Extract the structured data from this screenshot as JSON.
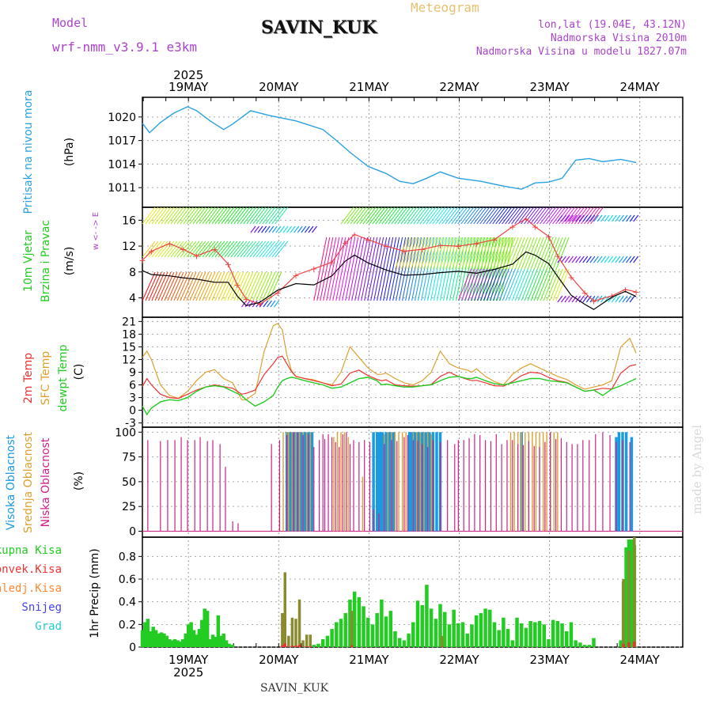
{
  "header": {
    "model_label": "Model",
    "model_name": "wrf-nmm_v3.9.1  e3km",
    "station": "SAVIN_KUK",
    "product": "Meteogram",
    "coords": "lon,lat (19.04E, 43.12N)",
    "elevation": "Nadmorska Visina 2010m",
    "model_elevation": "Nadmorska Visina u modelu 1827.07m",
    "bottom_station": "SAVIN_KUK",
    "credit": "made by Angel"
  },
  "time_axis": {
    "year": "2025",
    "days": [
      "19MAY",
      "20MAY",
      "21MAY",
      "22MAY",
      "23MAY",
      "24MAY"
    ]
  },
  "colors": {
    "pressure": "#2aa1e0",
    "wind_speed": "#000000",
    "wind_gust": "#ee4444",
    "temp2m": "#ee3333",
    "sfc_temp": "#dda030",
    "dewpt": "#22cc22",
    "high_cloud": "#1a9ae0",
    "mid_cloud": "#dda030",
    "low_cloud": "#cc2288",
    "total_precip": "#22cc22",
    "conv_precip": "#ee3333",
    "frozen_precip": "#ff8833",
    "snow": "#4444ee",
    "hail": "#22cccc"
  },
  "chart_data": [
    {
      "id": "pressure",
      "type": "line",
      "title": "Pritisak na nivou mora",
      "ylabel": "(hPa)",
      "yticks": [
        "1011",
        "1014",
        "1017",
        "1020"
      ],
      "ylim": [
        1008.5,
        1022.5
      ],
      "x_days": [
        0.0,
        0.08,
        0.2,
        0.35,
        0.5,
        0.6,
        0.75,
        0.9,
        1.0,
        1.2,
        1.4,
        1.7,
        2.0,
        2.15,
        2.3,
        2.5,
        2.7,
        2.85,
        3.0,
        3.15,
        3.3,
        3.5,
        3.75,
        4.0,
        4.2,
        4.35,
        4.5,
        4.65,
        4.8,
        4.95,
        5.1,
        5.3,
        5.47
      ],
      "values": [
        1019.2,
        1018,
        1019.3,
        1020.5,
        1021.3,
        1020.8,
        1019.5,
        1018.4,
        1019.1,
        1020.8,
        1020.2,
        1019.5,
        1018.4,
        1017,
        1015.5,
        1013.7,
        1012.8,
        1011.8,
        1011.5,
        1012.2,
        1013,
        1012.2,
        1011.8,
        1011.2,
        1010.8,
        1011.6,
        1011.7,
        1012.2,
        1014.5,
        1014.7,
        1014.3,
        1014.6,
        1014.2
      ]
    },
    {
      "id": "wind",
      "type": "line",
      "title": "10m Vjetar Brzina i Pravac",
      "ylabel": "(m/s)",
      "yticks": [
        "4",
        "8",
        "12",
        "16"
      ],
      "ylim": [
        1.0,
        18.0
      ],
      "compass_label": "w <- -> E",
      "x_days": [
        0.0,
        0.1,
        0.3,
        0.45,
        0.6,
        0.8,
        0.95,
        1.05,
        1.15,
        1.3,
        1.5,
        1.7,
        1.9,
        2.1,
        2.25,
        2.35,
        2.5,
        2.7,
        2.9,
        3.1,
        3.3,
        3.5,
        3.7,
        3.9,
        4.1,
        4.25,
        4.35,
        4.5,
        4.6,
        4.75,
        4.9,
        5.0,
        5.2,
        5.35,
        5.47
      ],
      "speed": [
        8.2,
        7.6,
        7.4,
        7.1,
        6.9,
        6.4,
        6.4,
        4.3,
        2.8,
        3.3,
        5.2,
        6.2,
        6.0,
        7.4,
        9.7,
        10.6,
        9.4,
        8.3,
        7.5,
        7.6,
        7.9,
        8.1,
        7.8,
        8.4,
        9.2,
        11.1,
        10.6,
        9.3,
        7.3,
        4.4,
        3.0,
        2.2,
        4.1,
        5.0,
        4.2
      ],
      "gust": [
        9.8,
        11.2,
        12.4,
        11.5,
        10.5,
        11.5,
        9.2,
        6.0,
        3.8,
        3.0,
        4.8,
        7.5,
        8.5,
        9.5,
        12.5,
        13.8,
        13.0,
        12.0,
        11.2,
        11.5,
        12.1,
        12.0,
        12.4,
        13.0,
        15.0,
        16.2,
        15.0,
        13.5,
        10.5,
        7.2,
        4.8,
        3.5,
        4.3,
        5.3,
        4.9
      ]
    },
    {
      "id": "temperature",
      "type": "line",
      "ylabel": "(C)",
      "legend": [
        "2m Temp",
        "SFC Temp",
        "dewpt Temp"
      ],
      "yticks": [
        "-3",
        "0",
        "3",
        "6",
        "9",
        "12",
        "15",
        "18",
        "21"
      ],
      "ylim": [
        -4.0,
        22.0
      ],
      "x_days": [
        0.0,
        0.05,
        0.1,
        0.2,
        0.3,
        0.4,
        0.5,
        0.6,
        0.7,
        0.8,
        0.9,
        1.0,
        1.1,
        1.15,
        1.25,
        1.35,
        1.45,
        1.5,
        1.55,
        1.6,
        1.65,
        1.7,
        1.8,
        1.9,
        2.0,
        2.1,
        2.2,
        2.3,
        2.4,
        2.5,
        2.6,
        2.65,
        2.7,
        2.8,
        2.9,
        3.0,
        3.1,
        3.2,
        3.3,
        3.4,
        3.5,
        3.6,
        3.65,
        3.7,
        3.8,
        3.9,
        4.0,
        4.1,
        4.2,
        4.3,
        4.4,
        4.5,
        4.6,
        4.7,
        4.8,
        4.9,
        5.0,
        5.1,
        5.2,
        5.3,
        5.4,
        5.47
      ],
      "t2m": [
        5.6,
        7.5,
        6.0,
        3.8,
        3.0,
        2.8,
        3.8,
        4.8,
        5.5,
        6.0,
        5.6,
        5.2,
        3.8,
        4.0,
        4.8,
        8.5,
        11.0,
        12.5,
        12.8,
        11.0,
        9.2,
        8.0,
        7.5,
        7.0,
        6.5,
        5.8,
        6.2,
        8.8,
        9.5,
        8.2,
        7.3,
        7.0,
        7.2,
        6.0,
        5.8,
        5.7,
        5.8,
        6.1,
        8.0,
        9.0,
        8.0,
        7.3,
        7.0,
        7.1,
        6.5,
        5.8,
        5.7,
        6.8,
        8.2,
        9.0,
        8.8,
        7.8,
        7.0,
        6.6,
        5.5,
        4.5,
        4.8,
        5.2,
        5.0,
        8.8,
        10.5,
        10.8
      ],
      "sfc": [
        12.5,
        14.0,
        12.0,
        6.0,
        3.5,
        2.8,
        4.5,
        7.0,
        9.0,
        9.6,
        7.5,
        6.5,
        2.5,
        2.5,
        4.0,
        14.0,
        20.0,
        20.5,
        19.0,
        13.0,
        9.5,
        8.0,
        7.5,
        7.2,
        6.5,
        6.0,
        9.0,
        15.0,
        12.5,
        10.0,
        8.5,
        8.5,
        8.8,
        7.5,
        6.5,
        6.0,
        7.0,
        9.0,
        14.0,
        11.0,
        10.0,
        9.5,
        9.0,
        9.8,
        8.0,
        6.8,
        6.0,
        8.5,
        10.0,
        11.0,
        10.0,
        9.0,
        8.0,
        7.3,
        6.0,
        5.0,
        5.5,
        6.0,
        7.0,
        15.0,
        17.0,
        13.5
      ],
      "dewpt": [
        1.0,
        -1.0,
        0.5,
        2.0,
        2.5,
        2.3,
        3.0,
        4.5,
        5.5,
        5.8,
        5.5,
        4.5,
        3.5,
        2.5,
        1.0,
        2.0,
        3.5,
        5.5,
        7.0,
        7.5,
        7.8,
        7.6,
        7.0,
        6.5,
        6.0,
        5.2,
        5.5,
        6.5,
        7.5,
        7.8,
        7.0,
        6.0,
        6.2,
        5.8,
        5.5,
        5.5,
        5.8,
        6.0,
        7.0,
        7.8,
        8.0,
        7.5,
        7.5,
        7.8,
        7.0,
        6.3,
        6.0,
        6.5,
        7.0,
        7.5,
        7.5,
        7.0,
        6.8,
        6.5,
        5.5,
        4.5,
        4.8,
        3.5,
        5.0,
        5.8,
        6.8,
        7.5
      ]
    },
    {
      "id": "clouds",
      "type": "bar",
      "ylabel": "(%)",
      "legend": [
        "Visoka Oblacnost",
        "Srednja Oblacnost",
        "Niska Oblacnost"
      ],
      "yticks": [
        "0",
        "25",
        "50",
        "75",
        "100"
      ],
      "ylim": [
        -6,
        105
      ],
      "low_x": [
        0.06,
        0.2,
        0.28,
        0.36,
        0.43,
        0.5,
        0.58,
        0.64,
        0.72,
        0.78,
        0.86,
        0.92,
        1.0,
        1.06,
        1.15,
        1.2,
        1.24,
        1.3,
        1.38,
        1.43,
        1.52,
        1.6,
        1.67,
        1.72,
        1.78,
        1.84,
        1.9,
        1.96,
        2.0,
        2.02,
        2.06,
        2.1,
        2.14,
        2.18,
        2.22,
        2.26,
        2.3,
        2.34,
        2.4,
        2.46,
        2.52,
        2.56,
        2.62,
        2.68,
        2.76,
        2.82,
        2.9,
        2.94,
        3.0,
        3.05,
        3.1,
        3.16,
        3.22,
        3.3,
        3.38,
        3.46,
        3.5,
        3.56,
        3.62,
        3.68,
        3.74,
        3.8,
        3.86,
        3.92,
        3.98,
        4.04,
        4.1,
        4.16,
        4.22,
        4.28,
        4.34,
        4.4,
        4.46,
        4.52,
        4.58,
        4.64,
        4.7,
        4.76,
        4.82,
        4.88,
        4.95,
        5.02,
        5.1,
        5.18,
        5.25,
        5.32,
        5.4
      ],
      "low_values": [
        92,
        91,
        92,
        92,
        95,
        92,
        92,
        95,
        91,
        92,
        88,
        65,
        10,
        8,
        0,
        0,
        0,
        0,
        0,
        88,
        92,
        97,
        100,
        100,
        97,
        98,
        85,
        92,
        98,
        93,
        98,
        95,
        90,
        85,
        98,
        100,
        88,
        92,
        90,
        92,
        90,
        22,
        18,
        88,
        92,
        91,
        95,
        97,
        92,
        91,
        88,
        85,
        92,
        90,
        92,
        88,
        92,
        92,
        94,
        98,
        97,
        92,
        91,
        98,
        88,
        92,
        92,
        88,
        87,
        91,
        86,
        85,
        90,
        100,
        93,
        94,
        90,
        88,
        88,
        92,
        92,
        98,
        100,
        97,
        90,
        92,
        90
      ],
      "mid_x": [
        1.52,
        1.56,
        1.6,
        1.62,
        1.66,
        1.7,
        1.74,
        1.78,
        1.82,
        1.86,
        2.12,
        2.16,
        2.2,
        2.24,
        2.28,
        2.44,
        2.68,
        2.72,
        2.76,
        2.8,
        2.84,
        2.88,
        2.92,
        3.0,
        3.04,
        3.08,
        3.12,
        3.16,
        3.2,
        4.08,
        4.12,
        4.16,
        4.2,
        4.24,
        4.28,
        4.32,
        4.36,
        4.4,
        4.44,
        4.48,
        4.52,
        4.56,
        4.6
      ],
      "mid_values": [
        60,
        100,
        100,
        100,
        100,
        100,
        100,
        100,
        100,
        100,
        95,
        100,
        100,
        100,
        95,
        55,
        98,
        100,
        100,
        100,
        100,
        100,
        100,
        100,
        100,
        100,
        100,
        100,
        98,
        100,
        100,
        100,
        100,
        100,
        100,
        100,
        100,
        100,
        100,
        100,
        100,
        100,
        100
      ],
      "high_x": [
        1.6,
        1.64,
        1.68,
        1.72,
        1.76,
        1.8,
        1.84,
        1.88,
        2.56,
        2.6,
        2.62,
        2.64,
        2.66,
        2.7,
        2.74,
        2.78,
        2.96,
        2.98,
        3.0,
        3.02,
        3.06,
        3.1,
        3.14,
        3.18,
        3.22,
        3.26,
        3.3,
        4.2,
        5.25,
        5.28,
        5.32,
        5.36,
        5.42
      ],
      "high_values": [
        100,
        100,
        100,
        100,
        100,
        100,
        100,
        100,
        100,
        100,
        100,
        100,
        100,
        100,
        100,
        100,
        100,
        100,
        100,
        100,
        100,
        100,
        100,
        100,
        100,
        100,
        100,
        100,
        95,
        100,
        100,
        100,
        95
      ]
    },
    {
      "id": "precip",
      "type": "bar",
      "ylabel": "1hr Precip (mm)",
      "legend": [
        "Ukupna Kisa",
        "Konvek.Kisa",
        "Zaledj.Kisa",
        "Snijeg",
        "Grad"
      ],
      "yticks": [
        "0",
        "0.2",
        "0.4",
        "0.6",
        "0.8"
      ],
      "ylim": [
        0,
        0.97
      ],
      "total_x": [
        0.0,
        0.03,
        0.06,
        0.09,
        0.12,
        0.15,
        0.18,
        0.21,
        0.24,
        0.27,
        0.3,
        0.33,
        0.36,
        0.39,
        0.42,
        0.45,
        0.48,
        0.51,
        0.54,
        0.57,
        0.6,
        0.63,
        0.66,
        0.69,
        0.72,
        0.75,
        0.78,
        0.81,
        0.84,
        0.87,
        0.9,
        0.93,
        0.96,
        1.0,
        1.9,
        1.95,
        2.0,
        2.05,
        2.1,
        2.15,
        2.2,
        2.25,
        2.3,
        2.35,
        2.4,
        2.45,
        2.5,
        2.55,
        2.6,
        2.65,
        2.7,
        2.75,
        2.8,
        2.85,
        2.9,
        2.95,
        3.0,
        3.05,
        3.1,
        3.15,
        3.2,
        3.25,
        3.3,
        3.35,
        3.4,
        3.45,
        3.5,
        3.55,
        3.6,
        3.65,
        3.7,
        3.75,
        3.8,
        3.85,
        3.9,
        3.95,
        4.0,
        4.05,
        4.1,
        4.15,
        4.2,
        4.25,
        4.3,
        4.35,
        4.4,
        4.45,
        4.5,
        4.55,
        4.6,
        4.65,
        4.7,
        4.75,
        4.8,
        4.85,
        4.9,
        4.95,
        5.0,
        5.3,
        5.33,
        5.36,
        5.39,
        5.42,
        5.45
      ],
      "total_values": [
        0.15,
        0.22,
        0.25,
        0.14,
        0.18,
        0.15,
        0.12,
        0.13,
        0.12,
        0.1,
        0.07,
        0.06,
        0.07,
        0.06,
        0.05,
        0.07,
        0.12,
        0.2,
        0.22,
        0.15,
        0.11,
        0.16,
        0.24,
        0.34,
        0.32,
        0.07,
        0.11,
        0.09,
        0.28,
        0.1,
        0.12,
        0.06,
        0.03,
        0.02,
        0.02,
        0.03,
        0.07,
        0.1,
        0.16,
        0.22,
        0.25,
        0.3,
        0.42,
        0.49,
        0.44,
        0.36,
        0.26,
        0.2,
        0.3,
        0.42,
        0.27,
        0.32,
        0.14,
        0.08,
        0.06,
        0.12,
        0.22,
        0.41,
        0.37,
        0.55,
        0.34,
        0.25,
        0.38,
        0.31,
        0.2,
        0.33,
        0.21,
        0.22,
        0.12,
        0.2,
        0.28,
        0.3,
        0.34,
        0.33,
        0.22,
        0.15,
        0.26,
        0.16,
        0.06,
        0.26,
        0.21,
        0.17,
        0.23,
        0.22,
        0.23,
        0.2,
        0.07,
        0.24,
        0.23,
        0.21,
        0.14,
        0.22,
        0.06,
        0.04,
        0.02,
        0.02,
        0.08,
        0.06,
        0.58,
        0.88,
        0.95,
        0.95,
        0.9,
        0.97
      ],
      "conv_x": [
        1.55,
        1.58,
        1.62,
        1.66,
        1.7,
        1.74,
        1.78,
        1.82,
        1.86,
        2.32,
        3.32,
        5.33,
        5.39,
        5.45
      ],
      "conv_values": [
        0.3,
        0.66,
        0.1,
        0.26,
        0.25,
        0.42,
        0.06,
        0.11,
        0.11,
        0.32,
        0.1,
        0.6,
        0.85,
        0.97
      ]
    }
  ]
}
